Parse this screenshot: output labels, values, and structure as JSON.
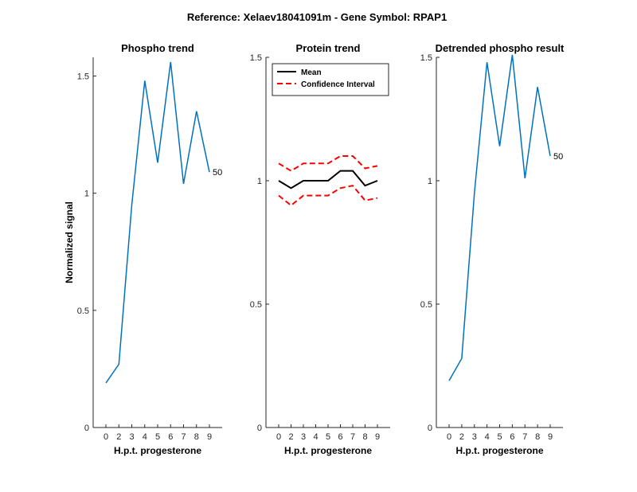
{
  "figure": {
    "suptitle": "Reference:  Xelaev18041091m - Gene Symbol:  RPAP1"
  },
  "chart_data": [
    {
      "type": "line",
      "title": "Phospho trend",
      "xlabel": "H.p.t. progesterone",
      "ylabel": "Normalized signal",
      "x": [
        "0",
        "2",
        "3",
        "4",
        "5",
        "6",
        "7",
        "8",
        "9"
      ],
      "ylim": [
        0,
        1.58
      ],
      "yticks": [
        "0",
        "0.5",
        "1",
        "1.5"
      ],
      "series": [
        {
          "values": [
            0.19,
            0.27,
            0.95,
            1.48,
            1.13,
            1.56,
            1.04,
            1.35,
            1.09
          ],
          "color": "#0072BD"
        }
      ],
      "end_label": "50"
    },
    {
      "type": "line",
      "title": "Protein trend",
      "xlabel": "H.p.t. progesterone",
      "ylabel": "",
      "x": [
        "0",
        "2",
        "3",
        "4",
        "5",
        "6",
        "7",
        "8",
        "9"
      ],
      "ylim": [
        0,
        1.5
      ],
      "yticks": [
        "0",
        "0.5",
        "1",
        "1.5"
      ],
      "legend_position": "top-left",
      "series": [
        {
          "name": "Mean",
          "values": [
            1.0,
            0.97,
            1.0,
            1.0,
            1.0,
            1.04,
            1.04,
            0.98,
            1.0
          ],
          "color": "#000000",
          "style": "solid"
        },
        {
          "name": "Confidence Interval",
          "values": [
            1.07,
            1.04,
            1.07,
            1.07,
            1.07,
            1.1,
            1.1,
            1.05,
            1.06
          ],
          "color": "#FF0000",
          "style": "dashed"
        },
        {
          "values": [
            0.94,
            0.9,
            0.94,
            0.94,
            0.94,
            0.97,
            0.98,
            0.92,
            0.93
          ],
          "color": "#FF0000",
          "style": "dashed"
        }
      ]
    },
    {
      "type": "line",
      "title": "Detrended phospho result",
      "xlabel": "H.p.t. progesterone",
      "ylabel": "",
      "x": [
        "0",
        "2",
        "3",
        "4",
        "5",
        "6",
        "7",
        "8",
        "9"
      ],
      "ylim": [
        0,
        1.5
      ],
      "yticks": [
        "0",
        "0.5",
        "1",
        "1.5"
      ],
      "series": [
        {
          "values": [
            0.19,
            0.28,
            0.95,
            1.48,
            1.14,
            1.51,
            1.01,
            1.38,
            1.1
          ],
          "color": "#0072BD"
        }
      ],
      "end_label": "50"
    }
  ]
}
